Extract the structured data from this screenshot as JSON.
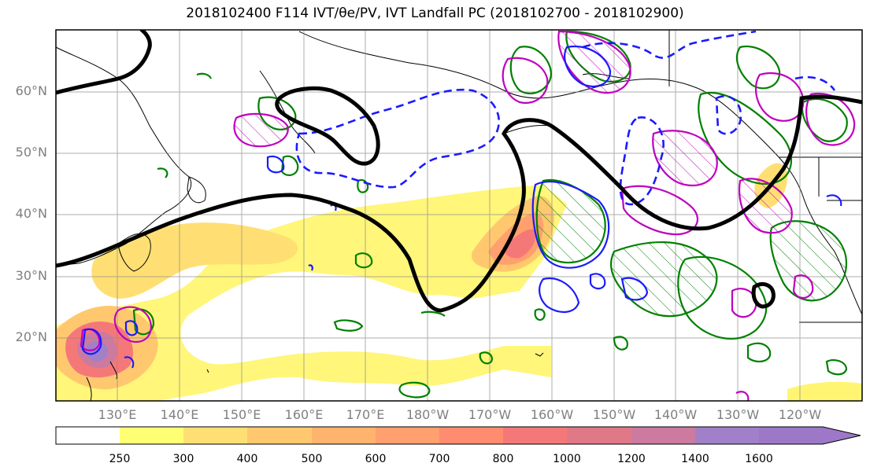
{
  "title": "2018102400 F114 IVT/θe/PV, IVT Landfall PC (2018102700 - 2018102900)",
  "lat_labels": [
    "60°N",
    "50°N",
    "40°N",
    "30°N",
    "20°N"
  ],
  "lon_labels": [
    "130°E",
    "140°E",
    "150°E",
    "160°E",
    "170°E",
    "180°W",
    "170°W",
    "160°W",
    "150°W",
    "140°W",
    "130°W",
    "120°W"
  ],
  "colorbar": {
    "labels": [
      "250",
      "300",
      "400",
      "500",
      "600",
      "700",
      "800",
      "1000",
      "1200",
      "1400",
      "1600"
    ],
    "colors": [
      "#ffffff",
      "#ffff73",
      "#ffdf73",
      "#ffc86e",
      "#ffb46e",
      "#ffa06e",
      "#ff8c6e",
      "#f57878",
      "#e07888",
      "#cc7aa0",
      "#a080c8"
    ]
  },
  "legend_colors": {
    "geopotential": "#000000",
    "theta_e": "#1a1aff",
    "pv_green": "#008000",
    "pv_magenta": "#bf00bf"
  }
}
